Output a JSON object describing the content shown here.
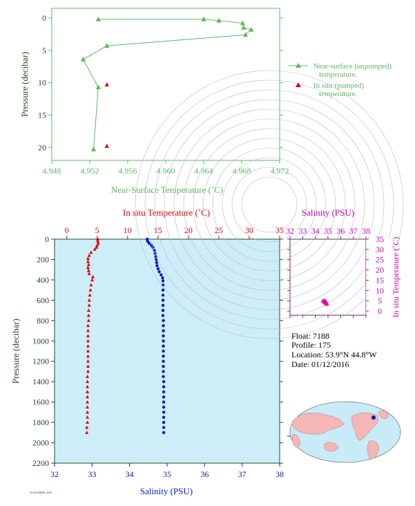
{
  "chart_data": [
    {
      "id": "near_surface",
      "type": "line",
      "xlabel": "Near-Surface Temperature (˚C)",
      "ylabel": "Pressure (decibar)",
      "xlim": [
        4.948,
        4.972
      ],
      "ylim": [
        22,
        -1.5
      ],
      "x_ticks": [
        4.948,
        4.952,
        4.956,
        4.96,
        4.964,
        4.968,
        4.972
      ],
      "x_tick_labels": [
        "4.948",
        "4.952",
        "4.956",
        "4.960",
        "4.964",
        "4.968",
        "4.972"
      ],
      "y_ticks": [
        0,
        5,
        10,
        15,
        20
      ],
      "y_tick_labels": [
        "0",
        "5",
        "10",
        "15",
        "20"
      ],
      "colors": {
        "axis": "#5cb85c",
        "insitu": "#e00000"
      },
      "legend_position": "right",
      "series": [
        {
          "name": "Near-surface (unpumped) temperature.",
          "legend_lines": [
            "Near-surface (unpumped)",
            "temperature."
          ],
          "marker": "triangle",
          "connected": true,
          "points": [
            [
              4.9529,
              0.2
            ],
            [
              4.964,
              0.2
            ],
            [
              4.9656,
              0.4
            ],
            [
              4.9681,
              0.8
            ],
            [
              4.9682,
              1.5
            ],
            [
              4.969,
              1.8
            ],
            [
              4.9684,
              2.6
            ],
            [
              4.9538,
              4.3
            ],
            [
              4.9513,
              6.4
            ],
            [
              4.9529,
              10.7
            ],
            [
              4.9524,
              20.3
            ]
          ]
        },
        {
          "name": "In situ (pumped) temperature.",
          "legend_lines": [
            "In situ (pumped)",
            "temperature."
          ],
          "marker": "triangle",
          "connected": false,
          "points": [
            [
              4.9538,
              10.3
            ],
            [
              4.9538,
              19.8
            ]
          ]
        }
      ]
    },
    {
      "id": "profile",
      "type": "scatter",
      "top_xlabel": "In situ Temperature (˚C)",
      "bottom_xlabel": "Salinity (PSU)",
      "ylabel": "Pressure (decibar)",
      "temp_lim": [
        -2,
        35
      ],
      "sal_lim": [
        32,
        38
      ],
      "ylim": [
        2200,
        0
      ],
      "temp_ticks": [
        0,
        5,
        10,
        15,
        20,
        25,
        30,
        35
      ],
      "sal_ticks": [
        32,
        33,
        34,
        35,
        36,
        37,
        38
      ],
      "y_ticks": [
        0,
        200,
        400,
        600,
        800,
        1000,
        1200,
        1400,
        1600,
        1800,
        2000,
        2200
      ],
      "colors": {
        "background": "#cdeef9",
        "temperature": "#e00000",
        "salinity": "#0018c8",
        "axis": "#1e4a1e"
      },
      "series": [
        {
          "name": "In situ Temperature",
          "marker": "triangle",
          "points": [
            [
              5.1,
              0
            ],
            [
              5.1,
              20
            ],
            [
              5.2,
              40
            ],
            [
              5.0,
              60
            ],
            [
              4.9,
              80
            ],
            [
              4.6,
              100
            ],
            [
              4.0,
              130
            ],
            [
              3.7,
              160
            ],
            [
              3.5,
              190
            ],
            [
              3.5,
              220
            ],
            [
              3.6,
              250
            ],
            [
              3.5,
              280
            ],
            [
              3.6,
              310
            ],
            [
              3.7,
              340
            ],
            [
              4.3,
              370
            ],
            [
              4.2,
              400
            ],
            [
              4.0,
              450
            ],
            [
              3.9,
              500
            ],
            [
              3.8,
              550
            ],
            [
              3.7,
              600
            ],
            [
              3.7,
              650
            ],
            [
              3.6,
              700
            ],
            [
              3.6,
              750
            ],
            [
              3.6,
              800
            ],
            [
              3.5,
              850
            ],
            [
              3.5,
              900
            ],
            [
              3.5,
              950
            ],
            [
              3.5,
              1000
            ],
            [
              3.5,
              1050
            ],
            [
              3.5,
              1100
            ],
            [
              3.5,
              1150
            ],
            [
              3.5,
              1200
            ],
            [
              3.5,
              1250
            ],
            [
              3.5,
              1300
            ],
            [
              3.4,
              1350
            ],
            [
              3.4,
              1400
            ],
            [
              3.4,
              1450
            ],
            [
              3.4,
              1500
            ],
            [
              3.4,
              1550
            ],
            [
              3.4,
              1600
            ],
            [
              3.4,
              1650
            ],
            [
              3.4,
              1700
            ],
            [
              3.4,
              1750
            ],
            [
              3.4,
              1800
            ],
            [
              3.3,
              1850
            ],
            [
              3.3,
              1900
            ]
          ]
        },
        {
          "name": "Salinity",
          "marker": "circle",
          "points": [
            [
              34.47,
              0
            ],
            [
              34.48,
              20
            ],
            [
              34.52,
              40
            ],
            [
              34.58,
              60
            ],
            [
              34.62,
              80
            ],
            [
              34.66,
              110
            ],
            [
              34.68,
              140
            ],
            [
              34.7,
              170
            ],
            [
              34.71,
              200
            ],
            [
              34.72,
              230
            ],
            [
              34.73,
              260
            ],
            [
              34.76,
              290
            ],
            [
              34.79,
              320
            ],
            [
              34.84,
              350
            ],
            [
              34.88,
              380
            ],
            [
              34.89,
              410
            ],
            [
              34.89,
              450
            ],
            [
              34.89,
              500
            ],
            [
              34.89,
              550
            ],
            [
              34.89,
              600
            ],
            [
              34.89,
              650
            ],
            [
              34.89,
              700
            ],
            [
              34.89,
              750
            ],
            [
              34.9,
              800
            ],
            [
              34.9,
              850
            ],
            [
              34.9,
              900
            ],
            [
              34.9,
              950
            ],
            [
              34.9,
              1000
            ],
            [
              34.9,
              1050
            ],
            [
              34.9,
              1100
            ],
            [
              34.9,
              1150
            ],
            [
              34.9,
              1200
            ],
            [
              34.9,
              1250
            ],
            [
              34.9,
              1300
            ],
            [
              34.9,
              1350
            ],
            [
              34.91,
              1400
            ],
            [
              34.91,
              1450
            ],
            [
              34.91,
              1500
            ],
            [
              34.91,
              1550
            ],
            [
              34.91,
              1600
            ],
            [
              34.91,
              1650
            ],
            [
              34.91,
              1700
            ],
            [
              34.91,
              1750
            ],
            [
              34.91,
              1800
            ],
            [
              34.91,
              1850
            ],
            [
              34.91,
              1900
            ]
          ]
        }
      ]
    },
    {
      "id": "ts_diagram",
      "type": "scatter",
      "xlabel": "Salinity (PSU)",
      "ylabel": "In situ Temperature (˚C)",
      "xlim": [
        32,
        38
      ],
      "ylim": [
        -2,
        35
      ],
      "x_ticks": [
        32,
        33,
        34,
        35,
        36,
        37,
        38
      ],
      "y_ticks": [
        0,
        5,
        10,
        15,
        20,
        25,
        30,
        35
      ],
      "colors": {
        "axis": "#c000c0",
        "points": "#ff00a0",
        "points_deep": "#a000ff"
      },
      "points": [
        [
          34.6,
          5.0
        ],
        [
          34.7,
          4.5
        ],
        [
          34.8,
          4.0
        ],
        [
          34.9,
          3.6
        ],
        [
          34.9,
          3.4
        ],
        [
          34.8,
          4.8
        ],
        [
          34.7,
          5.1
        ],
        [
          34.9,
          3.9
        ]
      ]
    }
  ],
  "info": {
    "float": "Float:  7188",
    "profile": "Profile:  175",
    "location": "Location:  53.9°N  44.8°W",
    "date": "Date:  01/12/2016"
  },
  "footer_note": "NOAA/PMEL  2016"
}
